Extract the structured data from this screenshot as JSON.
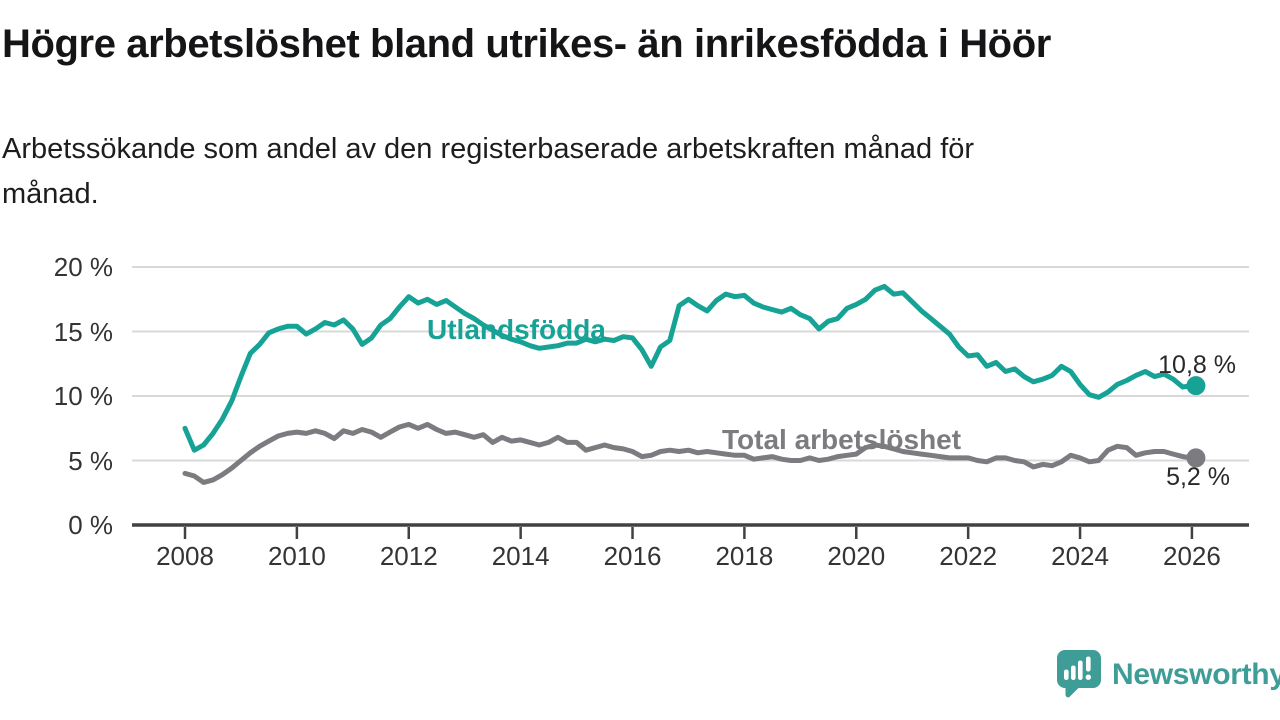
{
  "header": {
    "title": "Högre arbetslöshet bland utrikes- än inrikesfödda i Höör",
    "subtitle_lines": [
      "Arbetssökande som andel av den registerbaserade arbetskraften månad för",
      "månad."
    ]
  },
  "branding": {
    "wordmark": "Newsworthy",
    "teal": "#3f9d97",
    "logo_icon": "bar-chart-speech-bubble"
  },
  "chart_data": {
    "type": "line",
    "title": "Högre arbetslöshet bland utrikes- än inrikesfödda i Höör",
    "subtitle": "Arbetssökande som andel av den registerbaserade arbetskraften månad för månad.",
    "x_start": 2008.0,
    "x_step_years": 0.1666667,
    "xlim": [
      2007.1,
      2027.0
    ],
    "ylim": [
      0,
      21
    ],
    "grid": "horizontal",
    "grid_color": "#d9d9d9",
    "axis_color": "#414141",
    "tick_label_color": "#343436",
    "x_tick_years": [
      2008,
      2010,
      2012,
      2014,
      2016,
      2018,
      2020,
      2022,
      2024,
      2026
    ],
    "x_tick_labels": [
      "2008",
      "2010",
      "2012",
      "2014",
      "2016",
      "2018",
      "2020",
      "2022",
      "2024",
      "2026"
    ],
    "y_tick_values": [
      0,
      5,
      10,
      15,
      20
    ],
    "y_tick_labels": [
      "0 %",
      "5 %",
      "10 %",
      "15 %",
      "20 %"
    ],
    "series": [
      {
        "name": "Utlandsfödda",
        "color": "#17a296",
        "end_label": "10,8 %",
        "end_value": 10.8,
        "values": [
          7.5,
          5.8,
          6.2,
          7.1,
          8.2,
          9.6,
          11.5,
          13.3,
          14.0,
          14.9,
          15.2,
          15.4,
          15.4,
          14.8,
          15.2,
          15.7,
          15.5,
          15.9,
          15.2,
          14.0,
          14.5,
          15.5,
          16.0,
          16.9,
          17.7,
          17.2,
          17.5,
          17.1,
          17.4,
          16.9,
          16.4,
          16.0,
          15.5,
          15.1,
          14.7,
          14.4,
          14.2,
          13.9,
          13.7,
          13.8,
          13.9,
          14.1,
          14.1,
          14.4,
          14.2,
          14.4,
          14.3,
          14.6,
          14.5,
          13.6,
          12.3,
          13.8,
          14.3,
          17.0,
          17.5,
          17.0,
          16.6,
          17.4,
          17.9,
          17.7,
          17.8,
          17.2,
          16.9,
          16.7,
          16.5,
          16.8,
          16.3,
          16.0,
          15.2,
          15.8,
          16.0,
          16.8,
          17.1,
          17.5,
          18.2,
          18.5,
          17.9,
          18.0,
          17.3,
          16.6,
          16.0,
          15.4,
          14.8,
          13.8,
          13.1,
          13.2,
          12.3,
          12.6,
          11.9,
          12.1,
          11.5,
          11.1,
          11.3,
          11.6,
          12.3,
          11.9,
          10.9,
          10.1,
          9.9,
          10.3,
          10.9,
          11.2,
          11.6,
          11.9,
          11.5,
          11.7,
          11.3,
          10.7,
          10.8
        ]
      },
      {
        "name": "Total arbetslöshet",
        "color": "#7b7b80",
        "end_label": "5,2 %",
        "end_value": 5.2,
        "values": [
          4.0,
          3.8,
          3.3,
          3.5,
          3.9,
          4.4,
          5.0,
          5.6,
          6.1,
          6.5,
          6.9,
          7.1,
          7.2,
          7.1,
          7.3,
          7.1,
          6.7,
          7.3,
          7.1,
          7.4,
          7.2,
          6.8,
          7.2,
          7.6,
          7.8,
          7.5,
          7.8,
          7.4,
          7.1,
          7.2,
          7.0,
          6.8,
          7.0,
          6.4,
          6.8,
          6.5,
          6.6,
          6.4,
          6.2,
          6.4,
          6.8,
          6.4,
          6.4,
          5.8,
          6.0,
          6.2,
          6.0,
          5.9,
          5.7,
          5.3,
          5.4,
          5.7,
          5.8,
          5.7,
          5.8,
          5.6,
          5.7,
          5.6,
          5.5,
          5.4,
          5.4,
          5.1,
          5.2,
          5.3,
          5.1,
          5.0,
          5.0,
          5.2,
          5.0,
          5.1,
          5.3,
          5.4,
          5.5,
          6.0,
          6.2,
          6.1,
          5.9,
          5.7,
          5.6,
          5.5,
          5.4,
          5.3,
          5.2,
          5.2,
          5.2,
          5.0,
          4.9,
          5.2,
          5.2,
          5.0,
          4.9,
          4.5,
          4.7,
          4.6,
          4.9,
          5.4,
          5.2,
          4.9,
          5.0,
          5.8,
          6.1,
          6.0,
          5.4,
          5.6,
          5.7,
          5.7,
          5.5,
          5.3,
          5.2
        ]
      }
    ]
  }
}
